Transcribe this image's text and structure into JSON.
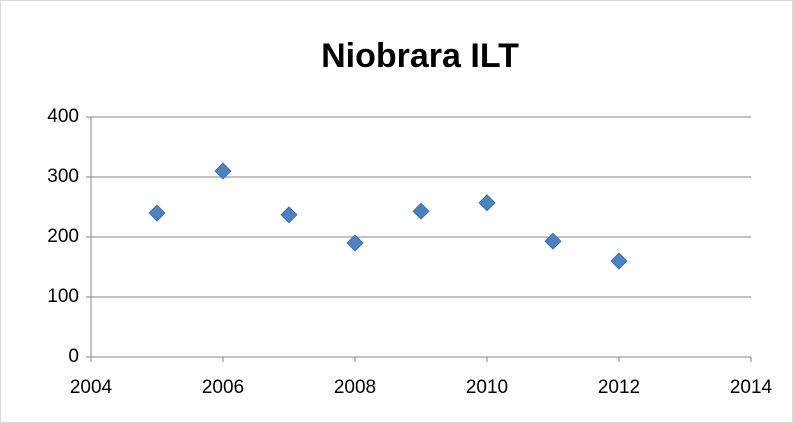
{
  "chart_data": {
    "type": "scatter",
    "title": "Niobrara ILT",
    "x": [
      2005,
      2006,
      2007,
      2008,
      2009,
      2010,
      2011,
      2012
    ],
    "values": [
      240,
      310,
      237,
      190,
      243,
      257,
      193,
      160
    ],
    "color": "#4f81bd",
    "xlim": [
      2004,
      2014
    ],
    "xticks": [
      2004,
      2006,
      2008,
      2010,
      2012,
      2014
    ],
    "ylim": [
      0,
      400
    ],
    "yticks": [
      0,
      100,
      200,
      300,
      400
    ],
    "grid": true
  }
}
